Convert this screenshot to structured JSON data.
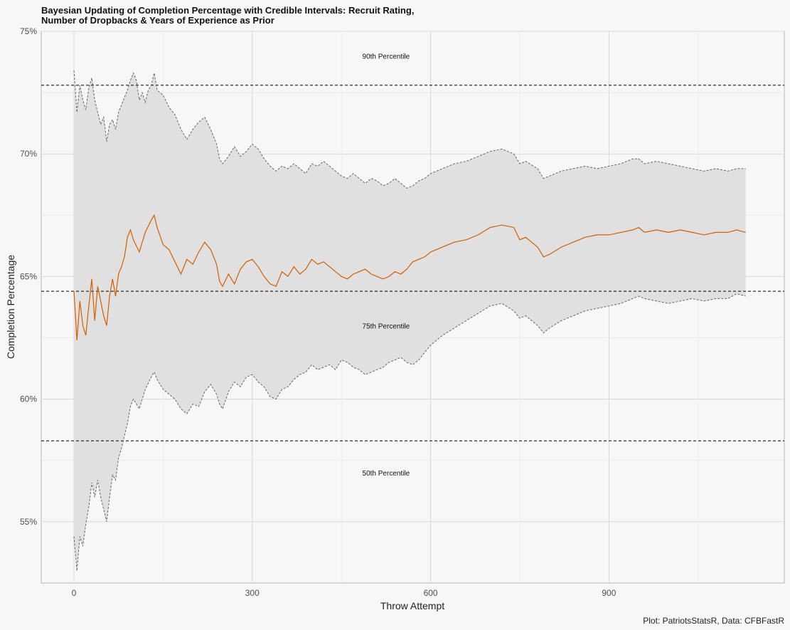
{
  "chart_data": {
    "type": "line",
    "title": "Bayesian Updating of Completion Percentage with Credible Intervals: Recruit Rating,",
    "title_line2": "Number of Dropbacks & Years of Experience as Prior",
    "xlabel": "Throw Attempt",
    "ylabel": "Completion Percentage",
    "caption": "Plot: PatriotsStatsR, Data: CFBFastR",
    "xlim": [
      -55,
      1195
    ],
    "ylim": [
      52.5,
      75
    ],
    "x_ticks": [
      0,
      300,
      600,
      900
    ],
    "x_tick_labels": [
      "0",
      "300",
      "600",
      "900"
    ],
    "y_ticks": [
      55,
      60,
      65,
      70,
      75
    ],
    "y_tick_labels": [
      "55%",
      "60%",
      "65%",
      "70%",
      "75%"
    ],
    "grid": true,
    "colors": {
      "estimate": "#d35f00",
      "bounds": "#666666",
      "ribbon": "#e0e0e0",
      "reference": "#000000"
    },
    "reference_lines": [
      {
        "label": "90th Percentile",
        "y": 72.8,
        "label_x": 525,
        "label_y": 74.0
      },
      {
        "label": "75th Percentile",
        "y": 64.4,
        "label_x": 525,
        "label_y": 63.0
      },
      {
        "label": "50th Percentile",
        "y": 58.3,
        "label_x": 525,
        "label_y": 57.0
      }
    ],
    "estimate": [
      [
        0,
        64.4
      ],
      [
        5,
        62.4
      ],
      [
        10,
        64.0
      ],
      [
        15,
        63.0
      ],
      [
        20,
        62.6
      ],
      [
        25,
        63.8
      ],
      [
        30,
        64.9
      ],
      [
        35,
        63.2
      ],
      [
        40,
        64.6
      ],
      [
        45,
        64.0
      ],
      [
        50,
        63.4
      ],
      [
        55,
        63.0
      ],
      [
        60,
        64.2
      ],
      [
        65,
        64.9
      ],
      [
        70,
        64.2
      ],
      [
        75,
        65.1
      ],
      [
        80,
        65.4
      ],
      [
        85,
        65.8
      ],
      [
        90,
        66.6
      ],
      [
        95,
        66.9
      ],
      [
        100,
        66.5
      ],
      [
        110,
        66.0
      ],
      [
        120,
        66.8
      ],
      [
        130,
        67.3
      ],
      [
        135,
        67.5
      ],
      [
        140,
        67.0
      ],
      [
        150,
        66.3
      ],
      [
        160,
        66.1
      ],
      [
        170,
        65.6
      ],
      [
        180,
        65.1
      ],
      [
        190,
        65.7
      ],
      [
        200,
        65.5
      ],
      [
        210,
        66.0
      ],
      [
        220,
        66.4
      ],
      [
        230,
        66.1
      ],
      [
        240,
        65.5
      ],
      [
        245,
        64.8
      ],
      [
        250,
        64.6
      ],
      [
        260,
        65.1
      ],
      [
        270,
        64.7
      ],
      [
        280,
        65.3
      ],
      [
        290,
        65.6
      ],
      [
        300,
        65.7
      ],
      [
        310,
        65.4
      ],
      [
        320,
        65.0
      ],
      [
        330,
        64.7
      ],
      [
        340,
        64.6
      ],
      [
        350,
        65.2
      ],
      [
        360,
        65.0
      ],
      [
        370,
        65.4
      ],
      [
        380,
        65.1
      ],
      [
        390,
        65.3
      ],
      [
        400,
        65.7
      ],
      [
        410,
        65.5
      ],
      [
        420,
        65.6
      ],
      [
        430,
        65.4
      ],
      [
        440,
        65.2
      ],
      [
        450,
        65.0
      ],
      [
        460,
        64.9
      ],
      [
        470,
        65.1
      ],
      [
        480,
        65.2
      ],
      [
        490,
        65.3
      ],
      [
        500,
        65.1
      ],
      [
        510,
        65.0
      ],
      [
        520,
        64.9
      ],
      [
        530,
        65.0
      ],
      [
        540,
        65.2
      ],
      [
        550,
        65.1
      ],
      [
        560,
        65.3
      ],
      [
        570,
        65.6
      ],
      [
        580,
        65.7
      ],
      [
        590,
        65.8
      ],
      [
        600,
        66.0
      ],
      [
        620,
        66.2
      ],
      [
        640,
        66.4
      ],
      [
        660,
        66.5
      ],
      [
        680,
        66.7
      ],
      [
        700,
        67.0
      ],
      [
        720,
        67.1
      ],
      [
        740,
        67.0
      ],
      [
        750,
        66.5
      ],
      [
        760,
        66.6
      ],
      [
        780,
        66.2
      ],
      [
        790,
        65.8
      ],
      [
        800,
        65.9
      ],
      [
        820,
        66.2
      ],
      [
        840,
        66.4
      ],
      [
        860,
        66.6
      ],
      [
        880,
        66.7
      ],
      [
        900,
        66.7
      ],
      [
        920,
        66.8
      ],
      [
        940,
        66.9
      ],
      [
        950,
        67.0
      ],
      [
        960,
        66.8
      ],
      [
        980,
        66.9
      ],
      [
        1000,
        66.8
      ],
      [
        1020,
        66.9
      ],
      [
        1040,
        66.8
      ],
      [
        1060,
        66.7
      ],
      [
        1080,
        66.8
      ],
      [
        1100,
        66.8
      ],
      [
        1115,
        66.9
      ],
      [
        1130,
        66.8
      ]
    ],
    "upper_bound": [
      [
        0,
        73.4
      ],
      [
        5,
        71.7
      ],
      [
        10,
        72.8
      ],
      [
        15,
        72.2
      ],
      [
        20,
        71.8
      ],
      [
        25,
        72.7
      ],
      [
        30,
        73.1
      ],
      [
        35,
        72.2
      ],
      [
        40,
        71.7
      ],
      [
        45,
        71.2
      ],
      [
        50,
        71.5
      ],
      [
        55,
        70.5
      ],
      [
        60,
        71.2
      ],
      [
        65,
        71.4
      ],
      [
        70,
        71.0
      ],
      [
        75,
        71.7
      ],
      [
        80,
        72.0
      ],
      [
        85,
        72.3
      ],
      [
        90,
        72.6
      ],
      [
        95,
        73.0
      ],
      [
        100,
        73.3
      ],
      [
        105,
        73.0
      ],
      [
        110,
        72.2
      ],
      [
        115,
        72.5
      ],
      [
        120,
        72.1
      ],
      [
        125,
        72.6
      ],
      [
        130,
        72.8
      ],
      [
        135,
        73.3
      ],
      [
        140,
        72.6
      ],
      [
        150,
        72.4
      ],
      [
        160,
        71.9
      ],
      [
        170,
        71.6
      ],
      [
        180,
        71.0
      ],
      [
        190,
        70.6
      ],
      [
        200,
        71.0
      ],
      [
        210,
        71.3
      ],
      [
        220,
        71.5
      ],
      [
        230,
        71.0
      ],
      [
        240,
        70.4
      ],
      [
        245,
        69.8
      ],
      [
        250,
        69.6
      ],
      [
        260,
        69.9
      ],
      [
        270,
        70.3
      ],
      [
        280,
        69.9
      ],
      [
        290,
        70.1
      ],
      [
        300,
        70.4
      ],
      [
        310,
        70.2
      ],
      [
        320,
        69.8
      ],
      [
        330,
        69.5
      ],
      [
        340,
        69.3
      ],
      [
        350,
        69.5
      ],
      [
        360,
        69.4
      ],
      [
        370,
        69.6
      ],
      [
        380,
        69.4
      ],
      [
        390,
        69.2
      ],
      [
        400,
        69.6
      ],
      [
        410,
        69.5
      ],
      [
        420,
        69.7
      ],
      [
        430,
        69.5
      ],
      [
        440,
        69.3
      ],
      [
        450,
        69.1
      ],
      [
        460,
        69.0
      ],
      [
        470,
        69.2
      ],
      [
        480,
        69.0
      ],
      [
        490,
        68.8
      ],
      [
        500,
        69.0
      ],
      [
        510,
        68.9
      ],
      [
        520,
        68.7
      ],
      [
        530,
        68.8
      ],
      [
        540,
        69.0
      ],
      [
        550,
        68.8
      ],
      [
        560,
        68.6
      ],
      [
        570,
        68.7
      ],
      [
        580,
        68.9
      ],
      [
        590,
        69.0
      ],
      [
        600,
        69.2
      ],
      [
        620,
        69.4
      ],
      [
        640,
        69.6
      ],
      [
        660,
        69.7
      ],
      [
        680,
        69.9
      ],
      [
        700,
        70.1
      ],
      [
        720,
        70.2
      ],
      [
        740,
        70.0
      ],
      [
        750,
        69.6
      ],
      [
        760,
        69.7
      ],
      [
        780,
        69.4
      ],
      [
        790,
        69.0
      ],
      [
        800,
        69.1
      ],
      [
        820,
        69.3
      ],
      [
        840,
        69.4
      ],
      [
        860,
        69.5
      ],
      [
        880,
        69.4
      ],
      [
        900,
        69.5
      ],
      [
        920,
        69.6
      ],
      [
        940,
        69.8
      ],
      [
        950,
        69.8
      ],
      [
        960,
        69.6
      ],
      [
        980,
        69.7
      ],
      [
        1000,
        69.6
      ],
      [
        1020,
        69.5
      ],
      [
        1040,
        69.4
      ],
      [
        1060,
        69.3
      ],
      [
        1080,
        69.4
      ],
      [
        1100,
        69.3
      ],
      [
        1115,
        69.4
      ],
      [
        1130,
        69.4
      ]
    ],
    "lower_bound": [
      [
        0,
        54.4
      ],
      [
        5,
        53.0
      ],
      [
        10,
        54.4
      ],
      [
        15,
        54.0
      ],
      [
        20,
        54.9
      ],
      [
        25,
        55.6
      ],
      [
        30,
        56.6
      ],
      [
        35,
        56.0
      ],
      [
        40,
        56.7
      ],
      [
        45,
        56.0
      ],
      [
        50,
        55.5
      ],
      [
        55,
        55.0
      ],
      [
        60,
        56.0
      ],
      [
        65,
        56.9
      ],
      [
        70,
        56.7
      ],
      [
        75,
        57.6
      ],
      [
        80,
        58.0
      ],
      [
        85,
        58.5
      ],
      [
        90,
        59.0
      ],
      [
        95,
        59.7
      ],
      [
        100,
        60.0
      ],
      [
        105,
        59.8
      ],
      [
        110,
        59.6
      ],
      [
        120,
        60.4
      ],
      [
        130,
        60.9
      ],
      [
        135,
        61.1
      ],
      [
        140,
        60.8
      ],
      [
        150,
        60.4
      ],
      [
        160,
        60.2
      ],
      [
        170,
        60.0
      ],
      [
        180,
        59.6
      ],
      [
        190,
        59.4
      ],
      [
        200,
        59.8
      ],
      [
        210,
        59.7
      ],
      [
        220,
        60.3
      ],
      [
        230,
        60.6
      ],
      [
        240,
        60.2
      ],
      [
        245,
        59.8
      ],
      [
        250,
        59.6
      ],
      [
        260,
        60.3
      ],
      [
        270,
        60.7
      ],
      [
        280,
        60.5
      ],
      [
        290,
        60.9
      ],
      [
        300,
        61.0
      ],
      [
        310,
        60.7
      ],
      [
        320,
        60.5
      ],
      [
        330,
        60.1
      ],
      [
        340,
        60.0
      ],
      [
        350,
        60.4
      ],
      [
        360,
        60.5
      ],
      [
        370,
        60.8
      ],
      [
        380,
        61.0
      ],
      [
        390,
        61.1
      ],
      [
        400,
        61.4
      ],
      [
        410,
        61.2
      ],
      [
        420,
        61.3
      ],
      [
        430,
        61.4
      ],
      [
        440,
        61.2
      ],
      [
        450,
        61.6
      ],
      [
        460,
        61.5
      ],
      [
        470,
        61.3
      ],
      [
        480,
        61.2
      ],
      [
        490,
        61.0
      ],
      [
        500,
        61.1
      ],
      [
        510,
        61.2
      ],
      [
        520,
        61.3
      ],
      [
        530,
        61.5
      ],
      [
        540,
        61.6
      ],
      [
        550,
        61.7
      ],
      [
        560,
        61.5
      ],
      [
        570,
        61.4
      ],
      [
        580,
        61.6
      ],
      [
        590,
        61.9
      ],
      [
        600,
        62.2
      ],
      [
        620,
        62.6
      ],
      [
        640,
        62.9
      ],
      [
        660,
        63.2
      ],
      [
        680,
        63.5
      ],
      [
        700,
        63.8
      ],
      [
        720,
        63.9
      ],
      [
        740,
        63.6
      ],
      [
        750,
        63.3
      ],
      [
        760,
        63.4
      ],
      [
        780,
        63.0
      ],
      [
        790,
        62.7
      ],
      [
        800,
        62.9
      ],
      [
        820,
        63.2
      ],
      [
        840,
        63.4
      ],
      [
        860,
        63.6
      ],
      [
        880,
        63.7
      ],
      [
        900,
        63.8
      ],
      [
        920,
        63.9
      ],
      [
        940,
        64.1
      ],
      [
        950,
        64.2
      ],
      [
        960,
        64.1
      ],
      [
        980,
        64.0
      ],
      [
        1000,
        63.9
      ],
      [
        1020,
        64.0
      ],
      [
        1040,
        64.1
      ],
      [
        1060,
        64.0
      ],
      [
        1080,
        64.1
      ],
      [
        1100,
        64.1
      ],
      [
        1115,
        64.3
      ],
      [
        1130,
        64.2
      ]
    ]
  }
}
